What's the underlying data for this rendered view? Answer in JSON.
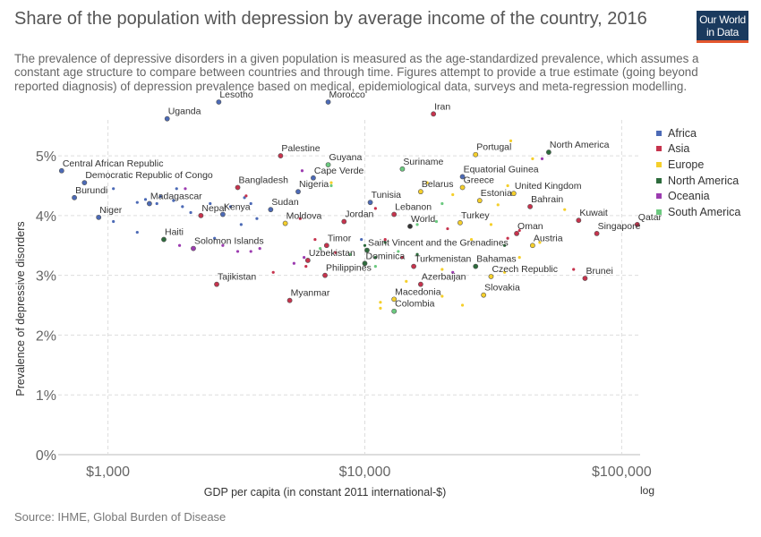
{
  "header": {
    "title": "Share of the population with depression by average income of the country, 2016",
    "subtitle": "The prevalence of depressive disorders in a given population is measured as the age-standardized prevalence, which assumes a constant age structure to compare between countries and through time. Figures attempt to provide a true estimate (going beyond reported diagnosis) of depression prevalence based on medical, epidemiological data, surveys and meta-regression modelling."
  },
  "logo": {
    "line1": "Our World",
    "line2": "in Data"
  },
  "source": "Source: IHME, Global Burden of Disease",
  "colors": {
    "Africa": "#4c6ab6",
    "Asia": "#c6334d",
    "Europe": "#f5cf2b",
    "North America": "#2d6b3c",
    "Oceania": "#9c3cb0",
    "South America": "#6bc97f"
  },
  "chart_data": {
    "type": "scatter",
    "title": "Share of the population with depression by average income of the country, 2016",
    "xlabel": "GDP per capita (in constant 2011 international-$)",
    "ylabel": "Prevalence of depressive disorders",
    "xscale": "log",
    "xscale_label": "log",
    "xlim": [
      640,
      118000
    ],
    "ylim": [
      0,
      5.6
    ],
    "x_ticks": [
      {
        "value": 1000,
        "label": "$1,000"
      },
      {
        "value": 10000,
        "label": "$10,000"
      },
      {
        "value": 100000,
        "label": "$100,000"
      }
    ],
    "y_ticks": [
      {
        "value": 0,
        "label": "0%"
      },
      {
        "value": 1,
        "label": "1%"
      },
      {
        "value": 2,
        "label": "2%"
      },
      {
        "value": 3,
        "label": "3%"
      },
      {
        "value": 4,
        "label": "4%"
      },
      {
        "value": 5,
        "label": "5%"
      }
    ],
    "grid": true,
    "legend_position": "right",
    "legend": [
      "Africa",
      "Asia",
      "Europe",
      "North America",
      "Oceania",
      "South America"
    ],
    "points": [
      {
        "label": "Lesotho",
        "x": 2700,
        "y": 5.9,
        "region": "Africa"
      },
      {
        "label": "Morocco",
        "x": 7200,
        "y": 5.9,
        "region": "Africa"
      },
      {
        "label": "Uganda",
        "x": 1700,
        "y": 5.62,
        "region": "Africa"
      },
      {
        "label": "Iran",
        "x": 18500,
        "y": 5.7,
        "region": "Asia"
      },
      {
        "label": "Palestine",
        "x": 4700,
        "y": 5.0,
        "region": "Asia"
      },
      {
        "label": "Guyana",
        "x": 7200,
        "y": 4.85,
        "region": "South America"
      },
      {
        "label": "Portugal",
        "x": 27000,
        "y": 5.02,
        "region": "Europe"
      },
      {
        "label": "North America",
        "x": 52000,
        "y": 5.06,
        "region": "North America"
      },
      {
        "label": "Central African Republic",
        "x": 660,
        "y": 4.75,
        "region": "Africa"
      },
      {
        "label": "Democratic Republic of Congo",
        "x": 810,
        "y": 4.55,
        "region": "Africa"
      },
      {
        "label": "Suriname",
        "x": 14000,
        "y": 4.78,
        "region": "South America"
      },
      {
        "label": "Cape Verde",
        "x": 6300,
        "y": 4.63,
        "region": "Africa"
      },
      {
        "label": "Equatorial Guinea",
        "x": 24000,
        "y": 4.65,
        "region": "Africa"
      },
      {
        "label": "Nigeria",
        "x": 5500,
        "y": 4.4,
        "region": "Africa"
      },
      {
        "label": "Bangladesh",
        "x": 3200,
        "y": 4.47,
        "region": "Asia"
      },
      {
        "label": "Greece",
        "x": 24000,
        "y": 4.47,
        "region": "Europe"
      },
      {
        "label": "Belarus",
        "x": 16500,
        "y": 4.4,
        "region": "Europe"
      },
      {
        "label": "United Kingdom",
        "x": 38000,
        "y": 4.37,
        "region": "Europe"
      },
      {
        "label": "Burundi",
        "x": 740,
        "y": 4.3,
        "region": "Africa"
      },
      {
        "label": "Madagascar",
        "x": 1450,
        "y": 4.2,
        "region": "Africa"
      },
      {
        "label": "Tunisia",
        "x": 10500,
        "y": 4.22,
        "region": "Africa"
      },
      {
        "label": "Estonia",
        "x": 28000,
        "y": 4.25,
        "region": "Europe"
      },
      {
        "label": "Bahrain",
        "x": 44000,
        "y": 4.15,
        "region": "Asia"
      },
      {
        "label": "Sudan",
        "x": 4300,
        "y": 4.1,
        "region": "Africa"
      },
      {
        "label": "Nepal",
        "x": 2300,
        "y": 4.0,
        "region": "Asia"
      },
      {
        "label": "Kenya",
        "x": 2800,
        "y": 4.02,
        "region": "Africa"
      },
      {
        "label": "Lebanon",
        "x": 13000,
        "y": 4.02,
        "region": "Asia"
      },
      {
        "label": "Niger",
        "x": 920,
        "y": 3.97,
        "region": "Africa"
      },
      {
        "label": "Moldova",
        "x": 4900,
        "y": 3.87,
        "region": "Europe"
      },
      {
        "label": "Jordan",
        "x": 8300,
        "y": 3.9,
        "region": "Asia"
      },
      {
        "label": "Turkey",
        "x": 23500,
        "y": 3.88,
        "region": "Europe"
      },
      {
        "label": "World",
        "x": 15000,
        "y": 3.82,
        "region": "World"
      },
      {
        "label": "Kuwait",
        "x": 68000,
        "y": 3.92,
        "region": "Asia"
      },
      {
        "label": "Qatar",
        "x": 115000,
        "y": 3.85,
        "region": "Asia"
      },
      {
        "label": "Oman",
        "x": 39000,
        "y": 3.7,
        "region": "Asia"
      },
      {
        "label": "Singapore",
        "x": 80000,
        "y": 3.7,
        "region": "Asia"
      },
      {
        "label": "Haiti",
        "x": 1650,
        "y": 3.6,
        "region": "North America"
      },
      {
        "label": "Solomon Islands",
        "x": 2150,
        "y": 3.45,
        "region": "Oceania"
      },
      {
        "label": "Timor",
        "x": 7100,
        "y": 3.5,
        "region": "Asia"
      },
      {
        "label": "Saint Vincent and the Grenadines",
        "x": 10200,
        "y": 3.42,
        "region": "North America"
      },
      {
        "label": "Austria",
        "x": 45000,
        "y": 3.5,
        "region": "Europe"
      },
      {
        "label": "Uzbekistan",
        "x": 6000,
        "y": 3.25,
        "region": "Asia"
      },
      {
        "label": "Dominica",
        "x": 10000,
        "y": 3.2,
        "region": "North America"
      },
      {
        "label": "Turkmenistan",
        "x": 15500,
        "y": 3.15,
        "region": "Asia"
      },
      {
        "label": "Bahamas",
        "x": 27000,
        "y": 3.15,
        "region": "North America"
      },
      {
        "label": "Philippines",
        "x": 7000,
        "y": 3.0,
        "region": "Asia"
      },
      {
        "label": "Czech Republic",
        "x": 31000,
        "y": 2.98,
        "region": "Europe"
      },
      {
        "label": "Brunei",
        "x": 72000,
        "y": 2.95,
        "region": "Asia"
      },
      {
        "label": "Tajikistan",
        "x": 2650,
        "y": 2.85,
        "region": "Asia"
      },
      {
        "label": "Azerbaijan",
        "x": 16500,
        "y": 2.85,
        "region": "Asia"
      },
      {
        "label": "Slovakia",
        "x": 29000,
        "y": 2.67,
        "region": "Europe"
      },
      {
        "label": "Myanmar",
        "x": 5100,
        "y": 2.58,
        "region": "Asia"
      },
      {
        "label": "Macedonia",
        "x": 13000,
        "y": 2.6,
        "region": "Europe"
      },
      {
        "label": "Colombia",
        "x": 13000,
        "y": 2.4,
        "region": "South America"
      }
    ],
    "unlabeled_points": [
      {
        "x": 1050,
        "y": 4.45,
        "region": "Africa"
      },
      {
        "x": 1300,
        "y": 4.22,
        "region": "Africa"
      },
      {
        "x": 1400,
        "y": 4.27,
        "region": "Africa"
      },
      {
        "x": 1550,
        "y": 4.2,
        "region": "Africa"
      },
      {
        "x": 1600,
        "y": 4.32,
        "region": "Africa"
      },
      {
        "x": 1800,
        "y": 4.25,
        "region": "Africa"
      },
      {
        "x": 1850,
        "y": 4.45,
        "region": "Africa"
      },
      {
        "x": 1950,
        "y": 4.15,
        "region": "Africa"
      },
      {
        "x": 2100,
        "y": 4.05,
        "region": "Africa"
      },
      {
        "x": 2500,
        "y": 4.2,
        "region": "Africa"
      },
      {
        "x": 3000,
        "y": 4.15,
        "region": "Africa"
      },
      {
        "x": 3400,
        "y": 4.3,
        "region": "Africa"
      },
      {
        "x": 3600,
        "y": 4.2,
        "region": "Africa"
      },
      {
        "x": 3800,
        "y": 3.95,
        "region": "Africa"
      },
      {
        "x": 1050,
        "y": 3.9,
        "region": "Africa"
      },
      {
        "x": 1300,
        "y": 3.72,
        "region": "Africa"
      },
      {
        "x": 2600,
        "y": 3.62,
        "region": "Africa"
      },
      {
        "x": 3300,
        "y": 3.85,
        "region": "Africa"
      },
      {
        "x": 9700,
        "y": 3.6,
        "region": "Africa"
      },
      {
        "x": 3450,
        "y": 4.33,
        "region": "Asia"
      },
      {
        "x": 5600,
        "y": 3.95,
        "region": "Asia"
      },
      {
        "x": 6400,
        "y": 3.6,
        "region": "Asia"
      },
      {
        "x": 7700,
        "y": 3.38,
        "region": "Asia"
      },
      {
        "x": 12000,
        "y": 3.6,
        "region": "Asia"
      },
      {
        "x": 14000,
        "y": 3.3,
        "region": "Asia"
      },
      {
        "x": 21000,
        "y": 3.78,
        "region": "Asia"
      },
      {
        "x": 36000,
        "y": 3.62,
        "region": "Asia"
      },
      {
        "x": 40000,
        "y": 3.75,
        "region": "Asia"
      },
      {
        "x": 65000,
        "y": 3.1,
        "region": "Asia"
      },
      {
        "x": 5900,
        "y": 3.15,
        "region": "Asia"
      },
      {
        "x": 4400,
        "y": 3.05,
        "region": "Asia"
      },
      {
        "x": 11000,
        "y": 4.12,
        "region": "Asia"
      },
      {
        "x": 17500,
        "y": 4.55,
        "region": "Europe"
      },
      {
        "x": 22000,
        "y": 4.35,
        "region": "Europe"
      },
      {
        "x": 33000,
        "y": 4.18,
        "region": "Europe"
      },
      {
        "x": 37000,
        "y": 5.25,
        "region": "Europe"
      },
      {
        "x": 45000,
        "y": 4.95,
        "region": "Europe"
      },
      {
        "x": 36000,
        "y": 4.5,
        "region": "Europe"
      },
      {
        "x": 31000,
        "y": 3.85,
        "region": "Europe"
      },
      {
        "x": 26000,
        "y": 3.6,
        "region": "Europe"
      },
      {
        "x": 48000,
        "y": 3.55,
        "region": "Europe"
      },
      {
        "x": 40000,
        "y": 3.3,
        "region": "Europe"
      },
      {
        "x": 35000,
        "y": 3.05,
        "region": "Europe"
      },
      {
        "x": 24000,
        "y": 2.5,
        "region": "Europe"
      },
      {
        "x": 20000,
        "y": 2.65,
        "region": "Europe"
      },
      {
        "x": 11500,
        "y": 2.55,
        "region": "Europe"
      },
      {
        "x": 11500,
        "y": 2.45,
        "region": "Europe"
      },
      {
        "x": 7400,
        "y": 4.55,
        "region": "Europe"
      },
      {
        "x": 60000,
        "y": 4.1,
        "region": "Europe"
      },
      {
        "x": 14500,
        "y": 2.9,
        "region": "Europe"
      },
      {
        "x": 20000,
        "y": 3.1,
        "region": "Europe"
      },
      {
        "x": 10000,
        "y": 3.5,
        "region": "North America"
      },
      {
        "x": 11000,
        "y": 3.3,
        "region": "North America"
      },
      {
        "x": 12000,
        "y": 3.55,
        "region": "North America"
      },
      {
        "x": 16000,
        "y": 3.35,
        "region": "North America"
      },
      {
        "x": 35000,
        "y": 3.5,
        "region": "North America"
      },
      {
        "x": 3200,
        "y": 3.4,
        "region": "Oceania"
      },
      {
        "x": 2800,
        "y": 3.5,
        "region": "Oceania"
      },
      {
        "x": 3600,
        "y": 3.4,
        "region": "Oceania"
      },
      {
        "x": 5300,
        "y": 3.2,
        "region": "Oceania"
      },
      {
        "x": 5800,
        "y": 3.3,
        "region": "Oceania"
      },
      {
        "x": 2000,
        "y": 4.45,
        "region": "Oceania"
      },
      {
        "x": 1900,
        "y": 3.5,
        "region": "Oceania"
      },
      {
        "x": 5700,
        "y": 4.75,
        "region": "Oceania"
      },
      {
        "x": 22000,
        "y": 3.05,
        "region": "Oceania"
      },
      {
        "x": 49000,
        "y": 4.95,
        "region": "Oceania"
      },
      {
        "x": 3900,
        "y": 3.45,
        "region": "Oceania"
      },
      {
        "x": 6700,
        "y": 3.45,
        "region": "South America"
      },
      {
        "x": 8800,
        "y": 3.35,
        "region": "South America"
      },
      {
        "x": 11000,
        "y": 3.15,
        "region": "South America"
      },
      {
        "x": 13500,
        "y": 3.4,
        "region": "South America"
      },
      {
        "x": 16000,
        "y": 3.85,
        "region": "South America"
      },
      {
        "x": 19000,
        "y": 3.9,
        "region": "South America"
      },
      {
        "x": 20000,
        "y": 4.2,
        "region": "South America"
      },
      {
        "x": 7400,
        "y": 4.5,
        "region": "South America"
      }
    ]
  }
}
